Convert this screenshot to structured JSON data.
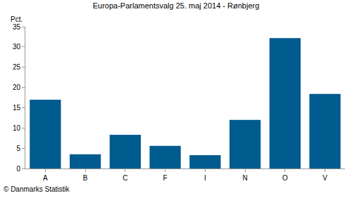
{
  "chart_data": {
    "type": "bar",
    "title": "Europa-Parlamentsvalg 25. maj 2014 - Rønbjerg",
    "ylabel": "Pct.",
    "categories": [
      "A",
      "B",
      "C",
      "F",
      "I",
      "N",
      "O",
      "V"
    ],
    "values": [
      17.0,
      3.5,
      8.3,
      5.6,
      3.3,
      12.0,
      32.2,
      18.4
    ],
    "color": "#005b8f",
    "ylim": [
      0,
      35
    ],
    "yticks": [
      0,
      5,
      10,
      15,
      20,
      25,
      30,
      35
    ],
    "grid": false,
    "annotations": [
      {
        "text": "© Danmarks Statistik"
      }
    ]
  }
}
